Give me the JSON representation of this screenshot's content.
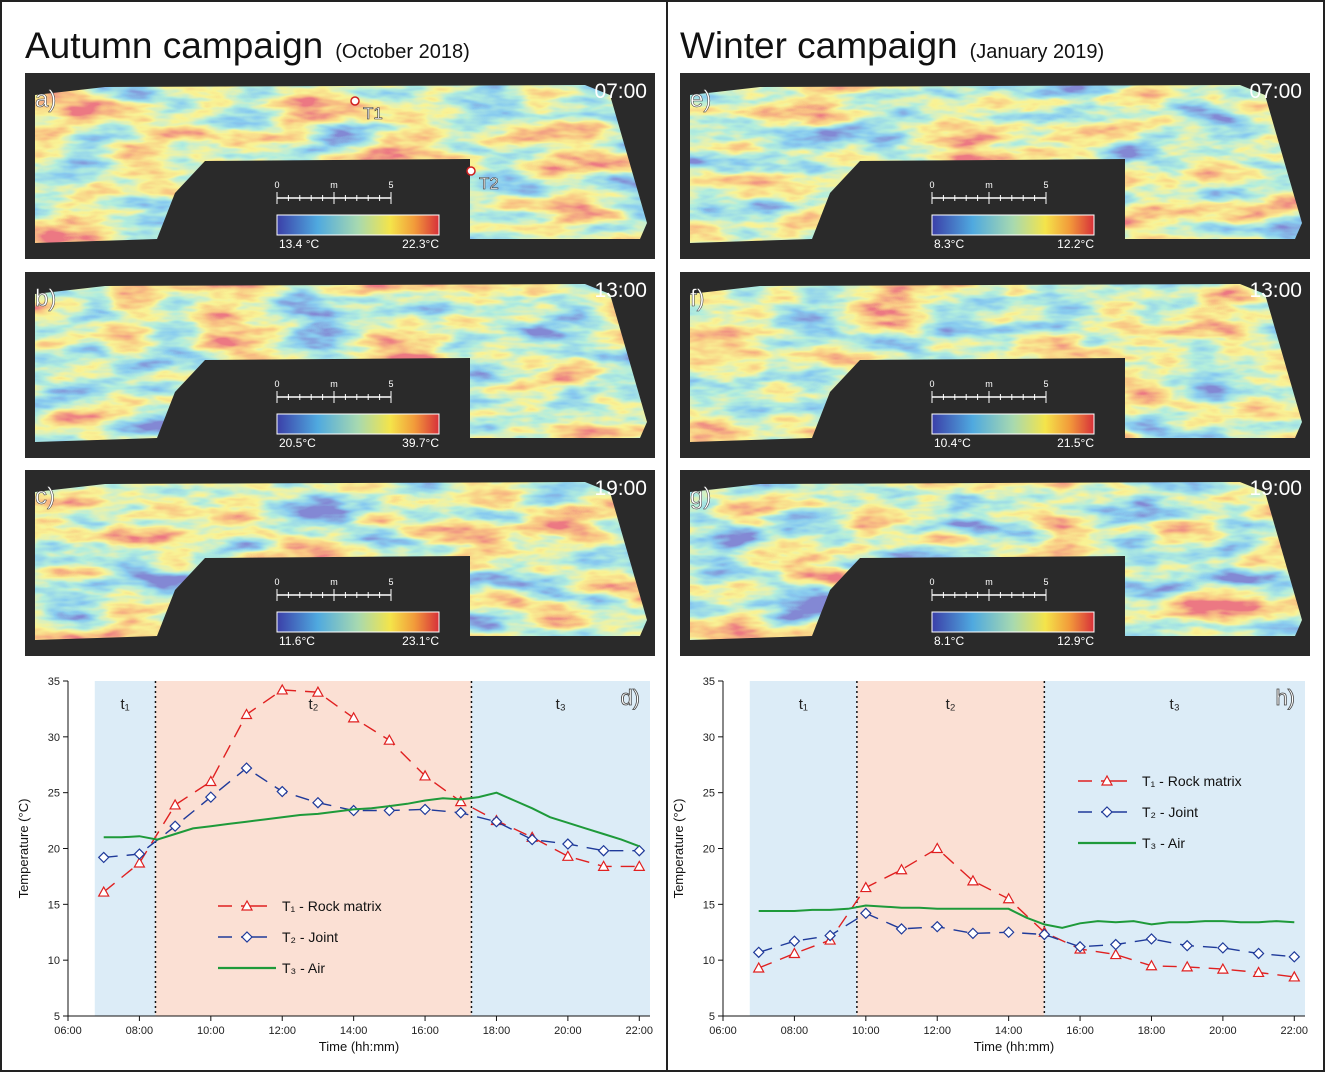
{
  "panels": [
    {
      "title": "Autumn campaign",
      "subtitle": "(October 2018)",
      "images": [
        {
          "label": "a)",
          "time": "07:00",
          "cmin": "13.4 °C",
          "cmax": "22.3°C"
        },
        {
          "label": "b)",
          "time": "13:00",
          "cmin": "20.5°C",
          "cmax": "39.7°C"
        },
        {
          "label": "c)",
          "time": "19:00",
          "cmin": "11.6°C",
          "cmax": "23.1°C"
        }
      ],
      "scale": {
        "start": "0",
        "unit": "m",
        "end": "5"
      },
      "points": [
        "T1",
        "T2"
      ]
    },
    {
      "title": "Winter campaign",
      "subtitle": "(January 2019)",
      "images": [
        {
          "label": "e)",
          "time": "07:00",
          "cmin": "8.3°C",
          "cmax": "12.2°C"
        },
        {
          "label": "f)",
          "time": "13:00",
          "cmin": "10.4°C",
          "cmax": "21.5°C"
        },
        {
          "label": "g)",
          "time": "19:00",
          "cmin": "8.1°C",
          "cmax": "12.9°C"
        }
      ],
      "scale": {
        "start": "0",
        "unit": "m",
        "end": "5"
      }
    }
  ],
  "chart_data": [
    {
      "type": "line",
      "panel_label": "d)",
      "xlabel": "Time (hh:mm)",
      "ylabel": "Temperature (°C)",
      "xlim": [
        6,
        22.3
      ],
      "ylim": [
        5,
        35
      ],
      "xticks": [
        {
          "value": 6,
          "label": "06:00"
        },
        {
          "value": 8,
          "label": "08:00"
        },
        {
          "value": 10,
          "label": "10:00"
        },
        {
          "value": 12,
          "label": "12:00"
        },
        {
          "value": 14,
          "label": "14:00"
        },
        {
          "value": 16,
          "label": "16:00"
        },
        {
          "value": 18,
          "label": "18:00"
        },
        {
          "value": 20,
          "label": "20:00"
        },
        {
          "value": 22,
          "label": "22:00"
        }
      ],
      "yticks": [
        5,
        10,
        15,
        20,
        25,
        30,
        35
      ],
      "spans": [
        {
          "label": "t₁",
          "start": 6.75,
          "end": 8.45,
          "color": "#dcecf7"
        },
        {
          "label": "t₂",
          "start": 8.45,
          "end": 17.3,
          "color": "#fbe0d4"
        },
        {
          "label": "t₃",
          "start": 17.3,
          "end": 22.3,
          "color": "#dcecf7"
        }
      ],
      "legend": "lower center",
      "series": [
        {
          "name": "T₁ - Rock matrix",
          "color": "#e02020",
          "style": "dashed",
          "marker": "triangle",
          "x": [
            7,
            8,
            9,
            10,
            11,
            12,
            13,
            14,
            15,
            16,
            17,
            18,
            19,
            20,
            21,
            22
          ],
          "values": [
            16.1,
            18.7,
            23.9,
            26,
            32,
            34.2,
            34,
            31.7,
            29.7,
            26.5,
            24.2,
            22.5,
            21,
            19.3,
            18.4,
            18.4
          ]
        },
        {
          "name": "T₂ - Joint",
          "color": "#1f3a9a",
          "style": "dashed",
          "marker": "diamond",
          "x": [
            7,
            8,
            9,
            10,
            11,
            12,
            13,
            14,
            15,
            16,
            17,
            18,
            19,
            20,
            21,
            22
          ],
          "values": [
            19.2,
            19.5,
            22,
            24.6,
            27.2,
            25.1,
            24.1,
            23.4,
            23.4,
            23.5,
            23.2,
            22.4,
            20.8,
            20.4,
            19.8,
            19.8
          ]
        },
        {
          "name": "T₃ - Air",
          "color": "#1e9a3a",
          "style": "solid",
          "marker": "none",
          "x": [
            7,
            7.5,
            8,
            8.5,
            9,
            9.5,
            10,
            10.5,
            11,
            11.5,
            12,
            12.5,
            13,
            13.5,
            14,
            14.5,
            15,
            15.5,
            16,
            16.5,
            17,
            17.5,
            18,
            18.5,
            19,
            19.5,
            20,
            20.5,
            21,
            21.5,
            22
          ],
          "values": [
            21,
            21,
            21.1,
            20.8,
            21.3,
            21.8,
            22,
            22.2,
            22.4,
            22.6,
            22.8,
            23,
            23.1,
            23.3,
            23.5,
            23.6,
            23.8,
            24,
            24.3,
            24.5,
            24.4,
            24.6,
            25,
            24.3,
            23.6,
            22.8,
            22.3,
            21.8,
            21.3,
            20.8,
            20.2
          ]
        }
      ]
    },
    {
      "type": "line",
      "panel_label": "h)",
      "xlabel": "Time (hh:mm)",
      "ylabel": "Temperature (°C)",
      "xlim": [
        6,
        22.3
      ],
      "ylim": [
        5,
        35
      ],
      "xticks": [
        {
          "value": 6,
          "label": "06:00"
        },
        {
          "value": 8,
          "label": "08:00"
        },
        {
          "value": 10,
          "label": "10:00"
        },
        {
          "value": 12,
          "label": "12:00"
        },
        {
          "value": 14,
          "label": "14:00"
        },
        {
          "value": 16,
          "label": "16:00"
        },
        {
          "value": 18,
          "label": "18:00"
        },
        {
          "value": 20,
          "label": "20:00"
        },
        {
          "value": 22,
          "label": "22:00"
        }
      ],
      "yticks": [
        5,
        10,
        15,
        20,
        25,
        30,
        35
      ],
      "spans": [
        {
          "label": "t₁",
          "start": 6.75,
          "end": 9.75,
          "color": "#dcecf7"
        },
        {
          "label": "t₂",
          "start": 9.75,
          "end": 15,
          "color": "#fbe0d4"
        },
        {
          "label": "t₃",
          "start": 15,
          "end": 22.3,
          "color": "#dcecf7"
        }
      ],
      "legend": "center right",
      "series": [
        {
          "name": "T₁ - Rock matrix",
          "color": "#e02020",
          "style": "dashed",
          "marker": "triangle",
          "x": [
            7,
            8,
            9,
            10,
            11,
            12,
            13,
            14,
            15,
            16,
            17,
            18,
            19,
            20,
            21,
            22
          ],
          "values": [
            9.3,
            10.6,
            11.8,
            16.5,
            18.1,
            20,
            17.1,
            15.5,
            12.5,
            11,
            10.5,
            9.5,
            9.4,
            9.2,
            8.9,
            8.5
          ]
        },
        {
          "name": "T₂ - Joint",
          "color": "#1f3a9a",
          "style": "dashed",
          "marker": "diamond",
          "x": [
            7,
            8,
            9,
            10,
            11,
            12,
            13,
            14,
            15,
            16,
            17,
            18,
            19,
            20,
            21,
            22
          ],
          "values": [
            10.7,
            11.7,
            12.2,
            14.2,
            12.8,
            13,
            12.4,
            12.5,
            12.3,
            11.2,
            11.4,
            11.9,
            11.3,
            11.1,
            10.6,
            10.3
          ]
        },
        {
          "name": "T₃ - Air",
          "color": "#1e9a3a",
          "style": "solid",
          "marker": "none",
          "x": [
            7,
            7.5,
            8,
            8.5,
            9,
            9.5,
            10,
            10.5,
            11,
            11.5,
            12,
            12.5,
            13,
            13.5,
            14,
            14.5,
            15,
            15.5,
            16,
            16.5,
            17,
            17.5,
            18,
            18.5,
            19,
            19.5,
            20,
            20.5,
            21,
            21.5,
            22
          ],
          "values": [
            14.4,
            14.4,
            14.4,
            14.5,
            14.5,
            14.6,
            14.9,
            14.8,
            14.7,
            14.7,
            14.6,
            14.6,
            14.6,
            14.6,
            14.6,
            13.8,
            13.2,
            12.9,
            13.3,
            13.5,
            13.4,
            13.5,
            13.2,
            13.4,
            13.4,
            13.5,
            13.5,
            13.4,
            13.4,
            13.5,
            13.4
          ]
        }
      ]
    }
  ]
}
